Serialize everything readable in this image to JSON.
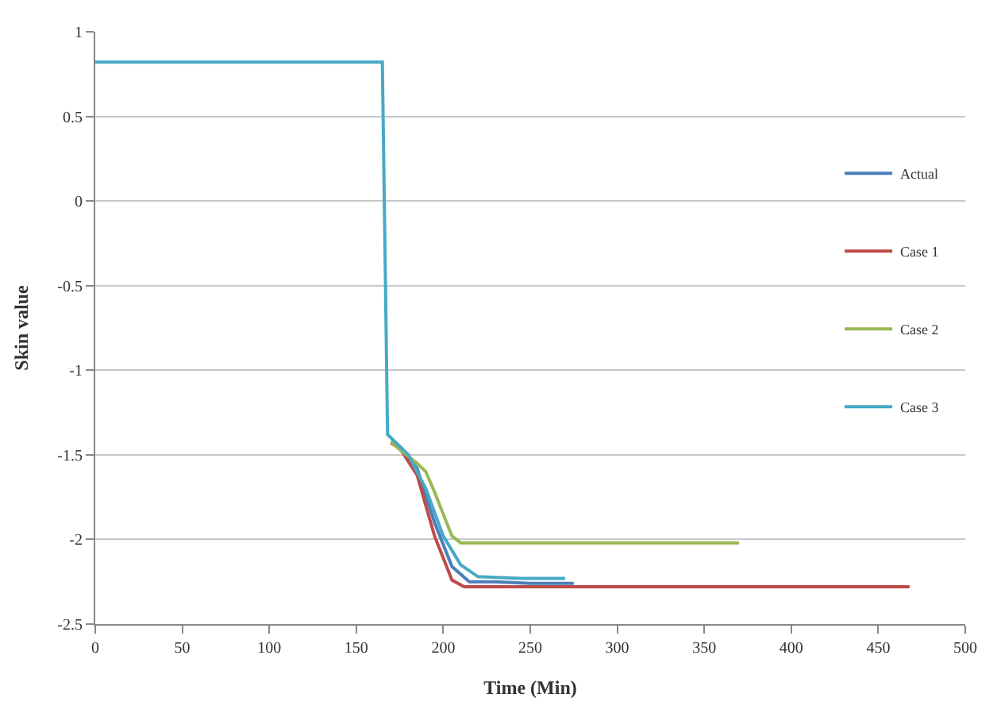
{
  "chart_data": {
    "type": "line",
    "xlabel": "Time (Min)",
    "ylabel": "Skin value",
    "xlim": [
      0,
      500
    ],
    "xticks": [
      0,
      50,
      100,
      150,
      200,
      250,
      300,
      350,
      400,
      450,
      500
    ],
    "ylim": [
      -2.5,
      1
    ],
    "yticks": [
      -2.5,
      -2,
      -1.5,
      -1,
      -0.5,
      0,
      0.5,
      1
    ],
    "grid": "y",
    "legend": "right",
    "line_style": "solid",
    "series": [
      {
        "name": "Actual",
        "color": "#4a7ebb",
        "x": [
          170,
          175,
          185,
          195,
          205,
          215,
          230,
          250,
          275
        ],
        "values": [
          -1.42,
          -1.45,
          -1.58,
          -1.9,
          -2.16,
          -2.25,
          -2.25,
          -2.26,
          -2.26
        ]
      },
      {
        "name": "Case 1",
        "color": "#be4b48",
        "x": [
          170,
          175,
          185,
          195,
          205,
          212,
          250,
          300,
          350,
          400,
          440,
          468
        ],
        "values": [
          -1.43,
          -1.46,
          -1.62,
          -1.98,
          -2.24,
          -2.28,
          -2.28,
          -2.28,
          -2.28,
          -2.28,
          -2.28,
          -2.28
        ]
      },
      {
        "name": "Case 2",
        "color": "#98b954",
        "x": [
          170,
          175,
          185,
          190,
          195,
          205,
          210,
          250,
          300,
          370
        ],
        "values": [
          -1.42,
          -1.47,
          -1.55,
          -1.6,
          -1.72,
          -1.98,
          -2.02,
          -2.02,
          -2.02,
          -2.02
        ]
      },
      {
        "name": "Case 3",
        "color": "#46aac5",
        "x": [
          0,
          20,
          40,
          60,
          80,
          100,
          120,
          140,
          160,
          165,
          168,
          180,
          190,
          200,
          210,
          220,
          245,
          270
        ],
        "values": [
          0.82,
          0.82,
          0.82,
          0.82,
          0.82,
          0.82,
          0.82,
          0.82,
          0.82,
          0.82,
          -1.38,
          -1.5,
          -1.7,
          -1.98,
          -2.15,
          -2.22,
          -2.23,
          -2.23
        ]
      }
    ]
  }
}
